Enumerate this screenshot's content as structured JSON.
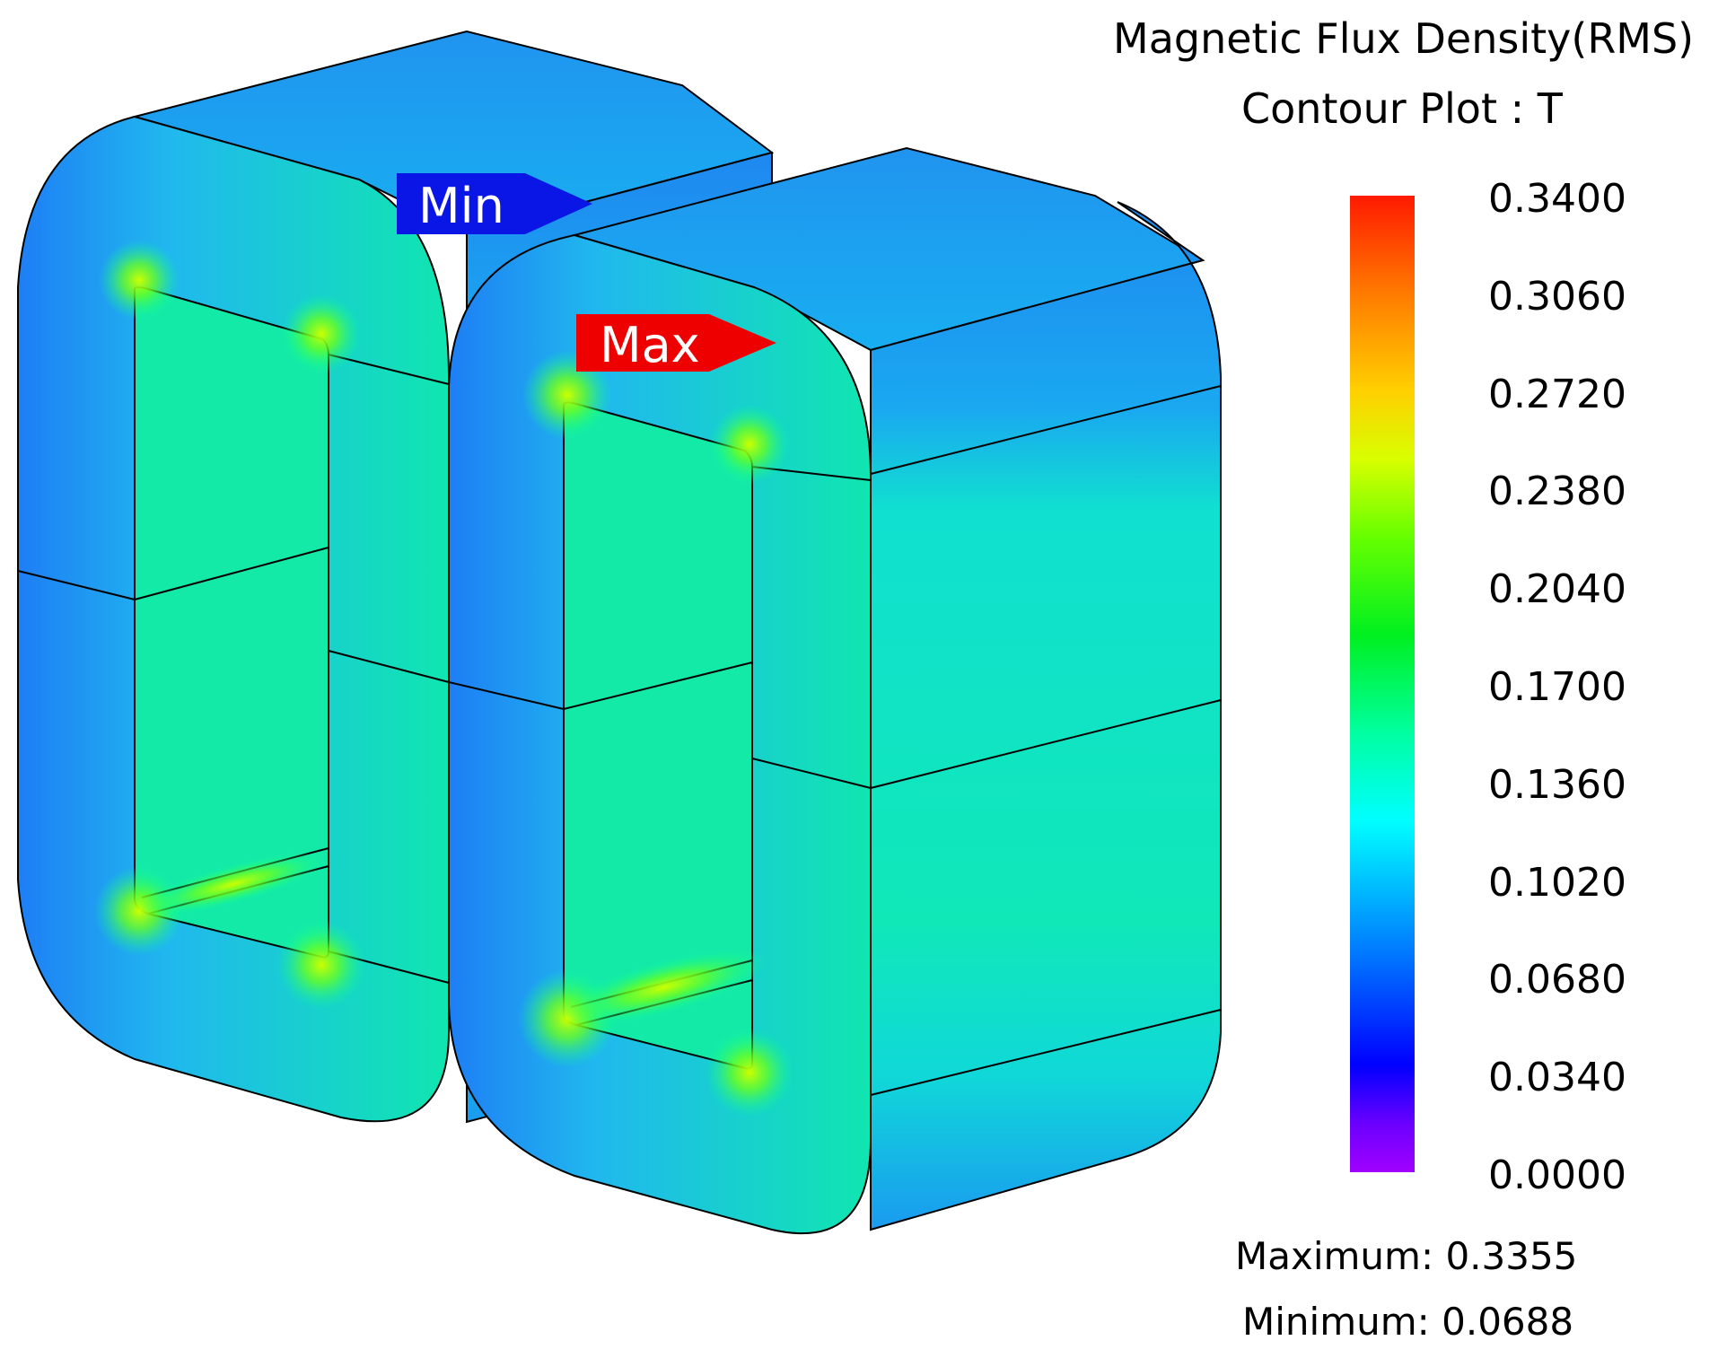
{
  "legend": {
    "title_line1": "Magnetic Flux Density(RMS)",
    "title_line2": "Contour Plot : T",
    "ticks": [
      "0.3400",
      "0.3060",
      "0.2720",
      "0.2380",
      "0.2040",
      "0.1700",
      "0.1360",
      "0.1020",
      "0.0680",
      "0.0340",
      "0.0000"
    ],
    "maximum_text": "Maximum: 0.3355",
    "minimum_text": "Minimum: 0.0688",
    "range": [
      0.0,
      0.34
    ],
    "colormap_top": "#ff1a00",
    "colormap_bottom": "#a000ff"
  },
  "markers": {
    "min_label": "Min",
    "max_label": "Max",
    "min_color": "#0a16e6",
    "max_color": "#ee0000"
  },
  "colors": {
    "core_face": "#10e8a8",
    "core_edge": "#1a8cf2",
    "core_top": "#1c9cf0",
    "outline": "#000000"
  }
}
